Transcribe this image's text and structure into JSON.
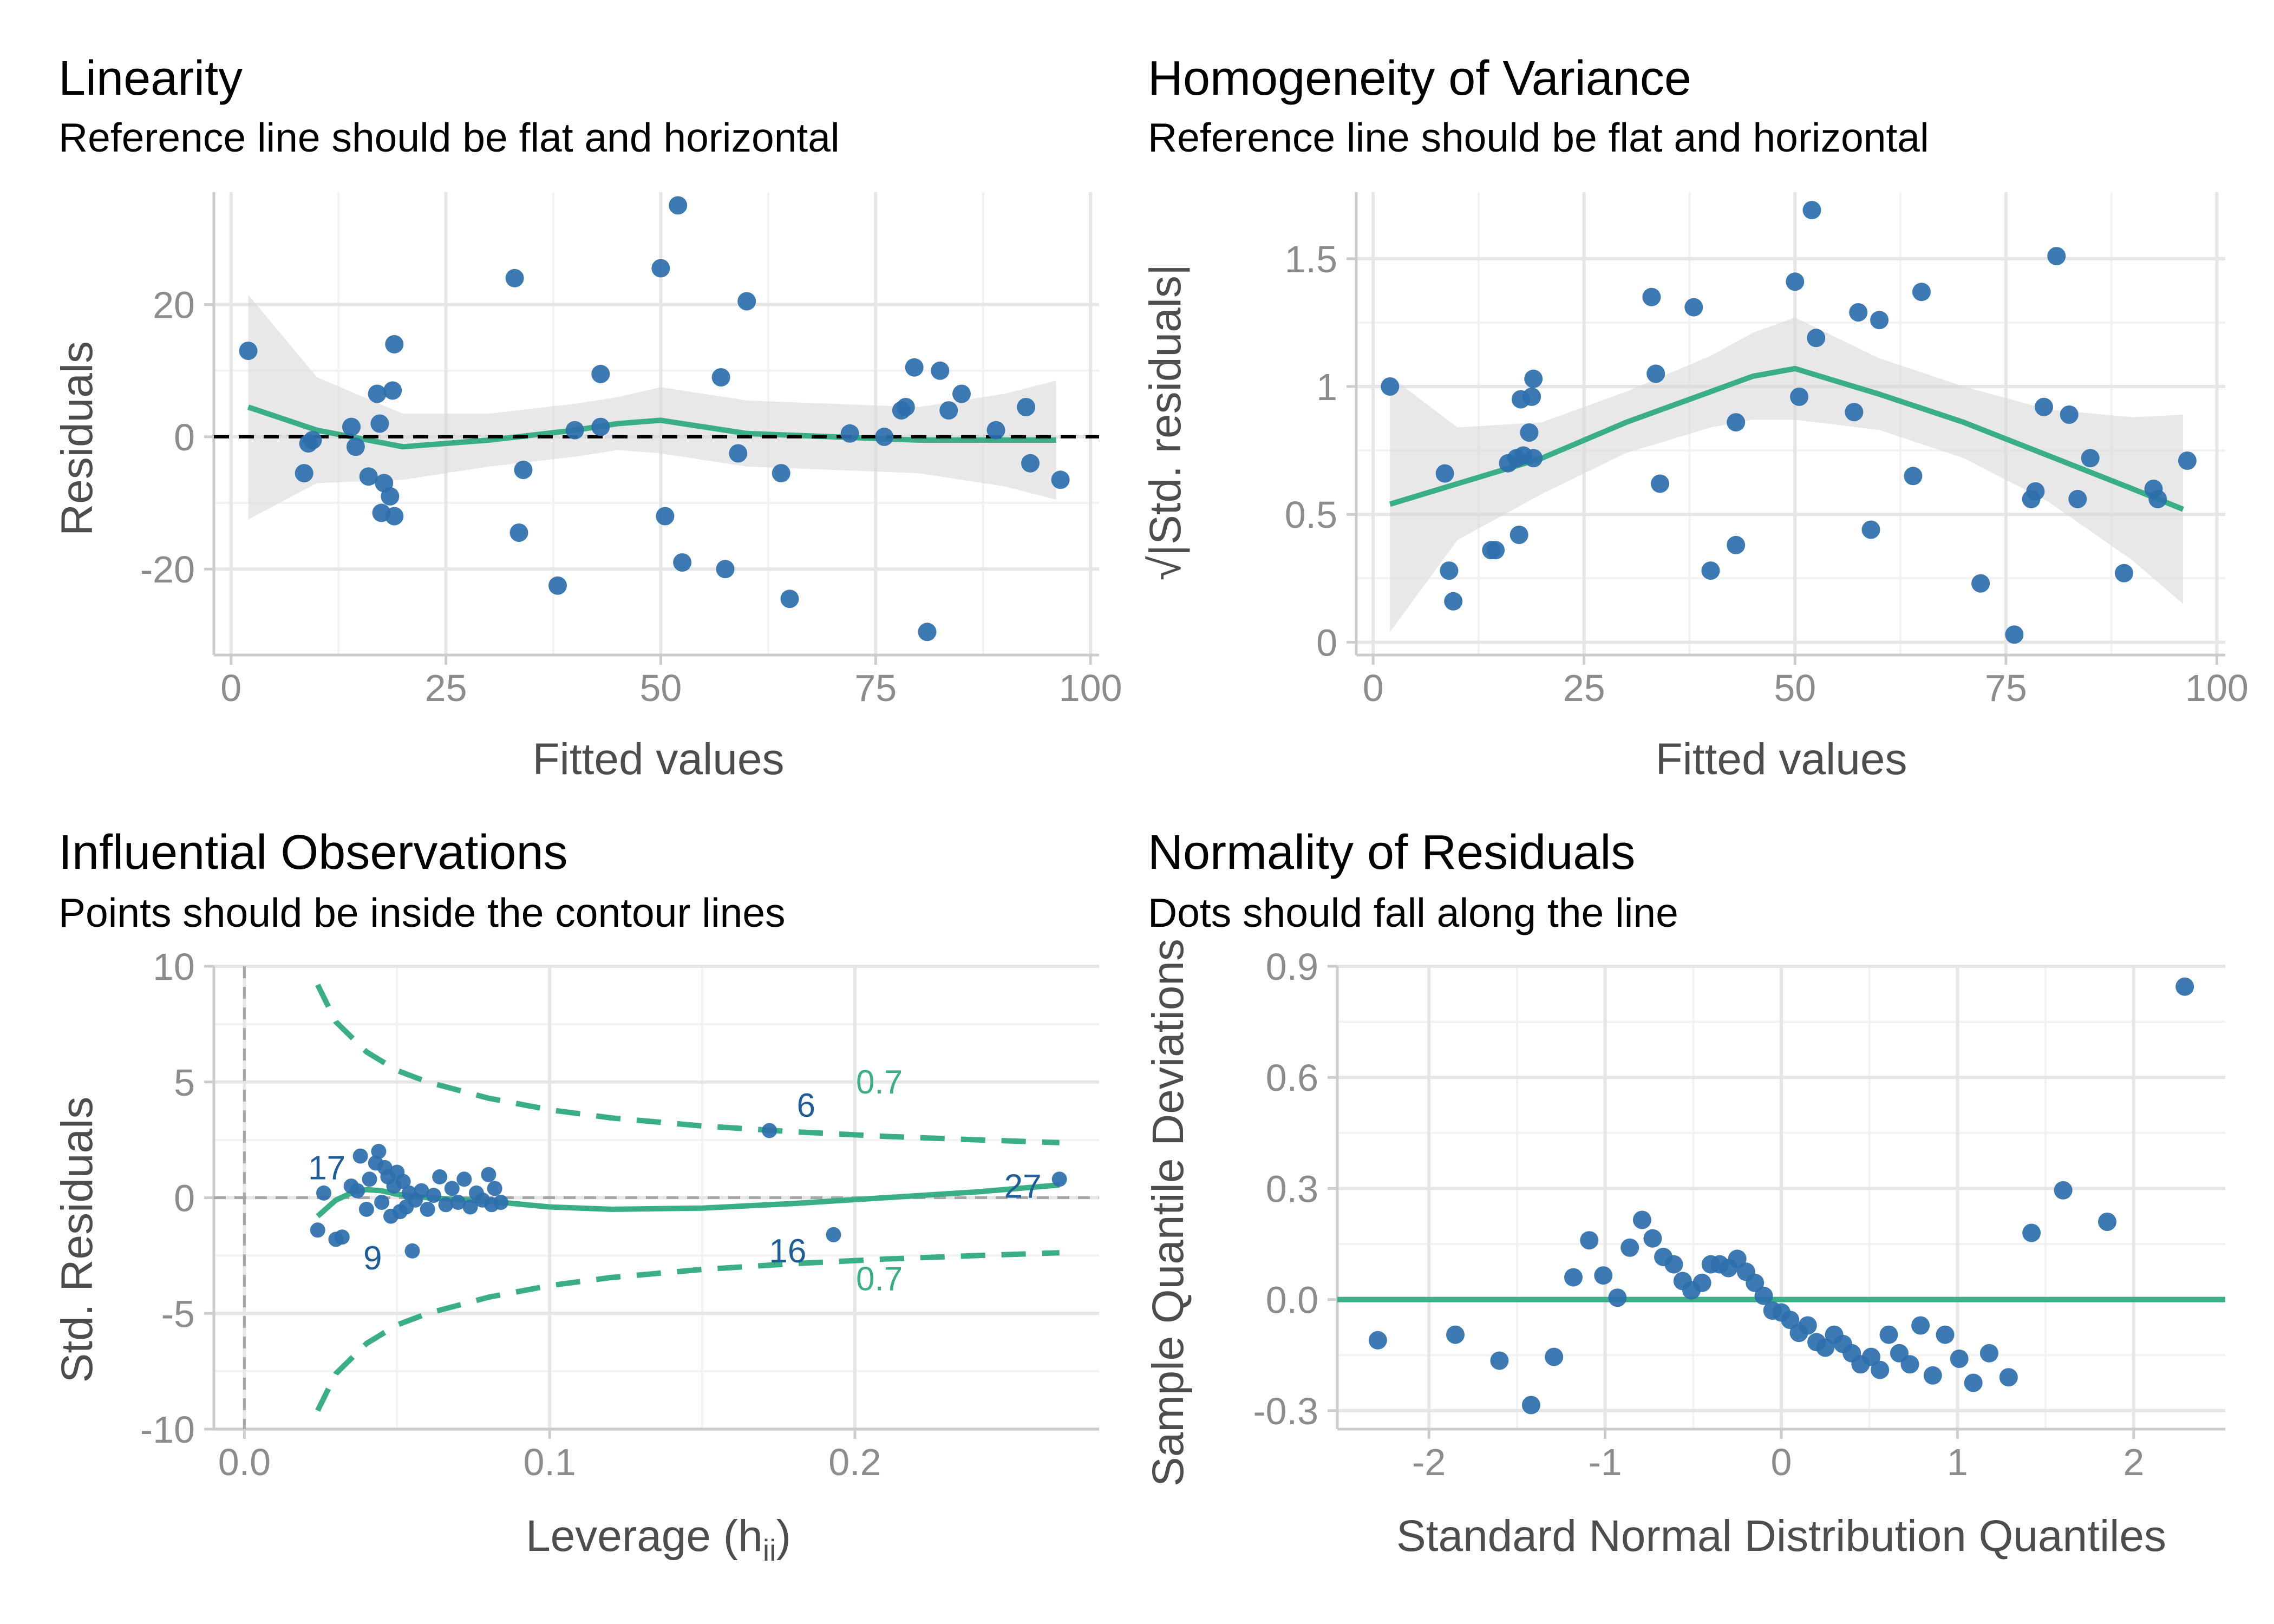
{
  "colors": {
    "point": "#2c6fad",
    "smooth": "#3aaf85",
    "band": "#d9d9d9",
    "grid_major": "#e6e6e6",
    "grid_minor": "#f2f2f2",
    "axis": "#cccccc",
    "reference": "#000000"
  },
  "chart_data": [
    {
      "type": "scatter",
      "title": "Linearity",
      "subtitle": "Reference line should be flat and horizontal",
      "xlabel": "Fitted values",
      "ylabel": "Residuals",
      "xlim": [
        -2,
        101
      ],
      "ylim": [
        -33,
        37
      ],
      "xticks": [
        0,
        25,
        50,
        75,
        100
      ],
      "yticks": [
        -20,
        0,
        20
      ],
      "grid": true,
      "reference_line": 0,
      "points": [
        [
          2,
          13
        ],
        [
          8.5,
          -5.5
        ],
        [
          9,
          -1
        ],
        [
          9.5,
          -0.5
        ],
        [
          14,
          1.5
        ],
        [
          14.5,
          -1.5
        ],
        [
          16,
          -6
        ],
        [
          17,
          6.5
        ],
        [
          17.3,
          2
        ],
        [
          17.5,
          -11.5
        ],
        [
          17.8,
          -7
        ],
        [
          18.5,
          -9
        ],
        [
          18.8,
          7
        ],
        [
          19,
          14
        ],
        [
          19,
          -12
        ],
        [
          33,
          24
        ],
        [
          33.5,
          -14.5
        ],
        [
          34,
          -5
        ],
        [
          38,
          -22.5
        ],
        [
          40,
          1
        ],
        [
          43,
          9.5
        ],
        [
          43,
          1.5
        ],
        [
          50,
          25.5
        ],
        [
          50.5,
          -12
        ],
        [
          52,
          35
        ],
        [
          52.5,
          -19
        ],
        [
          57,
          9
        ],
        [
          57.5,
          -20
        ],
        [
          59,
          -2.5
        ],
        [
          60,
          20.5
        ],
        [
          64,
          -5.5
        ],
        [
          65,
          -24.5
        ],
        [
          72,
          0.5
        ],
        [
          76,
          0
        ],
        [
          78,
          4
        ],
        [
          78.5,
          4.5
        ],
        [
          79.5,
          10.5
        ],
        [
          81,
          -29.5
        ],
        [
          82.5,
          10
        ],
        [
          83.5,
          4
        ],
        [
          85,
          6.5
        ],
        [
          89,
          1
        ],
        [
          92.5,
          4.5
        ],
        [
          93,
          -4
        ],
        [
          96.5,
          -6.5
        ]
      ],
      "smooth_x": [
        2,
        10,
        20,
        30,
        40,
        45,
        50,
        55,
        60,
        70,
        80,
        90,
        96
      ],
      "smooth_y": [
        4.5,
        1,
        -1.5,
        -0.5,
        1,
        2,
        2.5,
        1.5,
        0.5,
        0,
        -0.5,
        -0.5,
        -0.5
      ],
      "band_half_width": [
        17,
        8,
        5,
        4,
        4,
        4,
        5,
        5,
        5,
        5,
        5,
        7,
        9
      ]
    },
    {
      "type": "scatter",
      "title": "Homogeneity of Variance",
      "subtitle": "Reference line should be flat and horizontal",
      "xlabel": "Fitted values",
      "ylabel": "√|Std. residuals|",
      "xlim": [
        -2,
        101
      ],
      "ylim": [
        -0.05,
        1.76
      ],
      "xticks": [
        0,
        25,
        50,
        75,
        100
      ],
      "yticks": [
        0.0,
        0.5,
        1.0,
        1.5
      ],
      "grid": true,
      "points": [
        [
          2,
          1.0
        ],
        [
          8.5,
          0.66
        ],
        [
          9,
          0.28
        ],
        [
          9.5,
          0.16
        ],
        [
          14,
          0.36
        ],
        [
          14.5,
          0.36
        ],
        [
          16,
          0.7
        ],
        [
          17,
          0.72
        ],
        [
          17.3,
          0.42
        ],
        [
          17.5,
          0.95
        ],
        [
          17.8,
          0.73
        ],
        [
          18.5,
          0.82
        ],
        [
          18.8,
          0.96
        ],
        [
          19,
          1.03
        ],
        [
          19,
          0.72
        ],
        [
          33,
          1.35
        ],
        [
          33.5,
          1.05
        ],
        [
          34,
          0.62
        ],
        [
          38,
          1.31
        ],
        [
          40,
          0.28
        ],
        [
          43,
          0.86
        ],
        [
          43,
          0.38
        ],
        [
          50,
          1.41
        ],
        [
          50.5,
          0.96
        ],
        [
          52,
          1.69
        ],
        [
          52.5,
          1.19
        ],
        [
          57,
          0.9
        ],
        [
          57.5,
          1.29
        ],
        [
          59,
          0.44
        ],
        [
          60,
          1.26
        ],
        [
          64,
          0.65
        ],
        [
          65,
          1.37
        ],
        [
          72,
          0.23
        ],
        [
          76,
          0.03
        ],
        [
          78,
          0.56
        ],
        [
          78.5,
          0.59
        ],
        [
          79.5,
          0.92
        ],
        [
          81,
          1.51
        ],
        [
          82.5,
          0.89
        ],
        [
          83.5,
          0.56
        ],
        [
          85,
          0.72
        ],
        [
          89,
          0.27
        ],
        [
          92.5,
          0.6
        ],
        [
          93,
          0.56
        ],
        [
          96.5,
          0.71
        ]
      ],
      "smooth_x": [
        2,
        10,
        20,
        30,
        40,
        45,
        50,
        55,
        60,
        70,
        80,
        90,
        96
      ],
      "smooth_y": [
        0.54,
        0.62,
        0.72,
        0.86,
        0.98,
        1.04,
        1.07,
        1.02,
        0.97,
        0.86,
        0.73,
        0.6,
        0.52
      ],
      "band_half_width": [
        0.5,
        0.22,
        0.14,
        0.12,
        0.14,
        0.17,
        0.2,
        0.17,
        0.14,
        0.14,
        0.18,
        0.28,
        0.37
      ]
    },
    {
      "type": "scatter",
      "title": "Influential Observations",
      "subtitle": "Points should be inside the contour lines",
      "xlabel": "Leverage (h",
      "xlabel_sub": "ii",
      "xlabel_close": ")",
      "ylabel": "Std. Residuals",
      "xlim": [
        -0.01,
        0.28
      ],
      "ylim": [
        -10,
        10
      ],
      "xticks": [
        0.0,
        0.1,
        0.2
      ],
      "xtick_labels": [
        "0.0",
        "0.1",
        "0.2"
      ],
      "yticks": [
        -10,
        -5,
        0,
        5,
        10
      ],
      "grid": true,
      "reference_lines": {
        "x": 0,
        "y": 0
      },
      "points": [
        [
          0.024,
          -1.4
        ],
        [
          0.026,
          0.2
        ],
        [
          0.03,
          -1.8
        ],
        [
          0.032,
          -1.7
        ],
        [
          0.035,
          0.5
        ],
        [
          0.037,
          0.3
        ],
        [
          0.038,
          1.8
        ],
        [
          0.04,
          -0.5
        ],
        [
          0.041,
          0.8
        ],
        [
          0.043,
          1.5
        ],
        [
          0.044,
          2.0
        ],
        [
          0.045,
          -0.2
        ],
        [
          0.046,
          1.3
        ],
        [
          0.047,
          0.9
        ],
        [
          0.048,
          -0.8
        ],
        [
          0.049,
          0.5
        ],
        [
          0.05,
          1.1
        ],
        [
          0.051,
          -0.6
        ],
        [
          0.052,
          0.7
        ],
        [
          0.053,
          -0.4
        ],
        [
          0.054,
          0.2
        ],
        [
          0.055,
          -2.3
        ],
        [
          0.056,
          -0.1
        ],
        [
          0.058,
          0.3
        ],
        [
          0.06,
          -0.5
        ],
        [
          0.062,
          0.1
        ],
        [
          0.064,
          0.9
        ],
        [
          0.066,
          -0.3
        ],
        [
          0.068,
          0.4
        ],
        [
          0.07,
          -0.2
        ],
        [
          0.072,
          0.8
        ],
        [
          0.074,
          -0.4
        ],
        [
          0.076,
          0.2
        ],
        [
          0.078,
          -0.1
        ],
        [
          0.08,
          1.0
        ],
        [
          0.081,
          -0.3
        ],
        [
          0.082,
          0.4
        ],
        [
          0.084,
          -0.2
        ],
        [
          0.172,
          2.9
        ],
        [
          0.193,
          -1.6
        ],
        [
          0.267,
          0.8
        ]
      ],
      "labels": [
        {
          "text": "17",
          "x": 0.027,
          "y": 0.8
        },
        {
          "text": "9",
          "x": 0.042,
          "y": -3.1
        },
        {
          "text": "6",
          "x": 0.184,
          "y": 3.5
        },
        {
          "text": "16",
          "x": 0.178,
          "y": -2.8
        },
        {
          "text": "27",
          "x": 0.255,
          "y": 0.0
        }
      ],
      "contour_label": "0.7",
      "contour_labels": [
        {
          "text": "0.7",
          "x": 0.208,
          "y": 4.5
        },
        {
          "text": "0.7",
          "x": 0.208,
          "y": -4.0
        }
      ],
      "smooth_x": [
        0.024,
        0.03,
        0.035,
        0.04,
        0.045,
        0.05,
        0.06,
        0.08,
        0.1,
        0.12,
        0.15,
        0.18,
        0.21,
        0.24,
        0.267
      ],
      "smooth_y": [
        -0.8,
        -0.1,
        0.2,
        0.35,
        0.3,
        0.15,
        0.0,
        -0.15,
        -0.4,
        -0.5,
        -0.45,
        -0.25,
        0.0,
        0.25,
        0.55
      ],
      "contour_x": [
        0.024,
        0.03,
        0.04,
        0.05,
        0.06,
        0.08,
        0.1,
        0.12,
        0.15,
        0.18,
        0.21,
        0.24,
        0.267
      ],
      "contour_y": [
        9.2,
        7.6,
        6.3,
        5.5,
        5.0,
        4.3,
        3.8,
        3.45,
        3.1,
        2.85,
        2.65,
        2.5,
        2.38
      ]
    },
    {
      "type": "scatter",
      "title": "Normality of Residuals",
      "subtitle": "Dots should fall along the line",
      "xlabel": "Standard Normal Distribution Quantiles",
      "ylabel": "Sample Quantile Deviations",
      "xlim": [
        -2.52,
        2.52
      ],
      "ylim": [
        -0.35,
        0.9
      ],
      "xticks": [
        -2,
        -1,
        0,
        1,
        2
      ],
      "yticks": [
        -0.3,
        0.0,
        0.3,
        0.6,
        0.9
      ],
      "ytick_labels": [
        "-0.3",
        "0.0",
        "0.3",
        "0.6",
        "0.9"
      ],
      "grid": true,
      "reference_line": 0,
      "points": [
        [
          -2.29,
          -0.11
        ],
        [
          -1.85,
          -0.095
        ],
        [
          -1.6,
          -0.165
        ],
        [
          -1.42,
          -0.285
        ],
        [
          -1.29,
          -0.155
        ],
        [
          -1.18,
          0.06
        ],
        [
          -1.09,
          0.16
        ],
        [
          -1.01,
          0.065
        ],
        [
          -0.93,
          0.005
        ],
        [
          -0.86,
          0.14
        ],
        [
          -0.79,
          0.215
        ],
        [
          -0.73,
          0.165
        ],
        [
          -0.67,
          0.115
        ],
        [
          -0.61,
          0.095
        ],
        [
          -0.56,
          0.05
        ],
        [
          -0.51,
          0.025
        ],
        [
          -0.45,
          0.045
        ],
        [
          -0.4,
          0.095
        ],
        [
          -0.35,
          0.095
        ],
        [
          -0.3,
          0.085
        ],
        [
          -0.25,
          0.11
        ],
        [
          -0.2,
          0.075
        ],
        [
          -0.15,
          0.045
        ],
        [
          -0.1,
          0.01
        ],
        [
          -0.05,
          -0.03
        ],
        [
          0.0,
          -0.035
        ],
        [
          0.05,
          -0.055
        ],
        [
          0.1,
          -0.09
        ],
        [
          0.15,
          -0.07
        ],
        [
          0.2,
          -0.115
        ],
        [
          0.25,
          -0.13
        ],
        [
          0.3,
          -0.095
        ],
        [
          0.35,
          -0.12
        ],
        [
          0.4,
          -0.145
        ],
        [
          0.45,
          -0.175
        ],
        [
          0.51,
          -0.155
        ],
        [
          0.56,
          -0.19
        ],
        [
          0.61,
          -0.095
        ],
        [
          0.67,
          -0.145
        ],
        [
          0.73,
          -0.175
        ],
        [
          0.79,
          -0.07
        ],
        [
          0.86,
          -0.205
        ],
        [
          0.93,
          -0.095
        ],
        [
          1.01,
          -0.16
        ],
        [
          1.09,
          -0.225
        ],
        [
          1.18,
          -0.145
        ],
        [
          1.29,
          -0.21
        ],
        [
          1.42,
          0.18
        ],
        [
          1.6,
          0.295
        ],
        [
          1.85,
          0.21
        ],
        [
          2.29,
          0.845
        ]
      ]
    }
  ]
}
